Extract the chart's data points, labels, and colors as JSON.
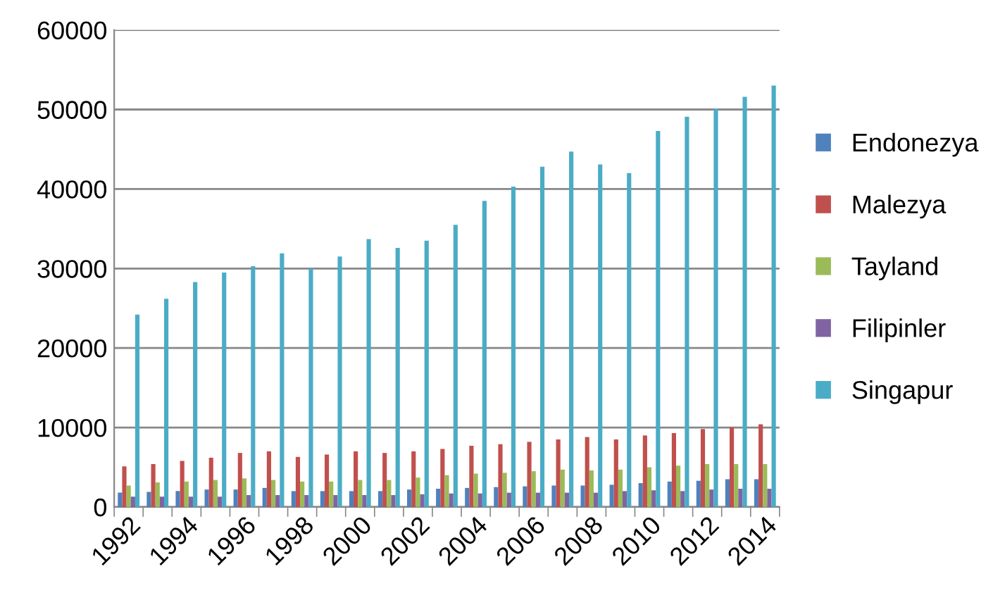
{
  "chart_data": {
    "type": "bar",
    "categories": [
      "1992",
      null,
      "1994",
      null,
      "1996",
      null,
      "1998",
      null,
      "2000",
      null,
      "2002",
      null,
      "2004",
      null,
      "2006",
      null,
      "2008",
      null,
      "2010",
      null,
      "2012",
      null,
      "2014"
    ],
    "series": [
      {
        "name": "Endonezya",
        "color": "#4f81bd",
        "values": [
          1800,
          1900,
          2000,
          2200,
          2200,
          2400,
          2000,
          2000,
          2000,
          2000,
          2200,
          2300,
          2400,
          2500,
          2600,
          2700,
          2700,
          2800,
          3000,
          3200,
          3300,
          3500,
          3500
        ]
      },
      {
        "name": "Malezya",
        "color": "#c0504d",
        "values": [
          5100,
          5400,
          5800,
          6200,
          6800,
          7000,
          6300,
          6600,
          7000,
          6800,
          7000,
          7300,
          7700,
          7900,
          8200,
          8500,
          8800,
          8500,
          9000,
          9300,
          9800,
          10000,
          10400
        ]
      },
      {
        "name": "Tayland",
        "color": "#9bbb59",
        "values": [
          2700,
          3100,
          3200,
          3400,
          3600,
          3400,
          3200,
          3200,
          3400,
          3400,
          3700,
          4000,
          4200,
          4300,
          4500,
          4700,
          4600,
          4700,
          5000,
          5200,
          5400,
          5400,
          5400
        ]
      },
      {
        "name": "Filipinler",
        "color": "#8064a2",
        "values": [
          1300,
          1300,
          1300,
          1300,
          1500,
          1500,
          1500,
          1500,
          1500,
          1500,
          1600,
          1700,
          1700,
          1800,
          1800,
          1800,
          1800,
          2000,
          2100,
          2000,
          2200,
          2300,
          2300
        ]
      },
      {
        "name": "Singapur",
        "color": "#4bacc6",
        "values": [
          24200,
          26200,
          28300,
          29500,
          30300,
          31900,
          30000,
          31500,
          33700,
          32600,
          33500,
          35500,
          38500,
          40300,
          42800,
          44700,
          43100,
          42000,
          47300,
          49100,
          50100,
          51600,
          53000
        ]
      }
    ],
    "ylim": [
      0,
      60000
    ],
    "yticks": [
      0,
      10000,
      20000,
      30000,
      40000,
      50000,
      60000
    ],
    "grid": "y",
    "legend": "right"
  }
}
